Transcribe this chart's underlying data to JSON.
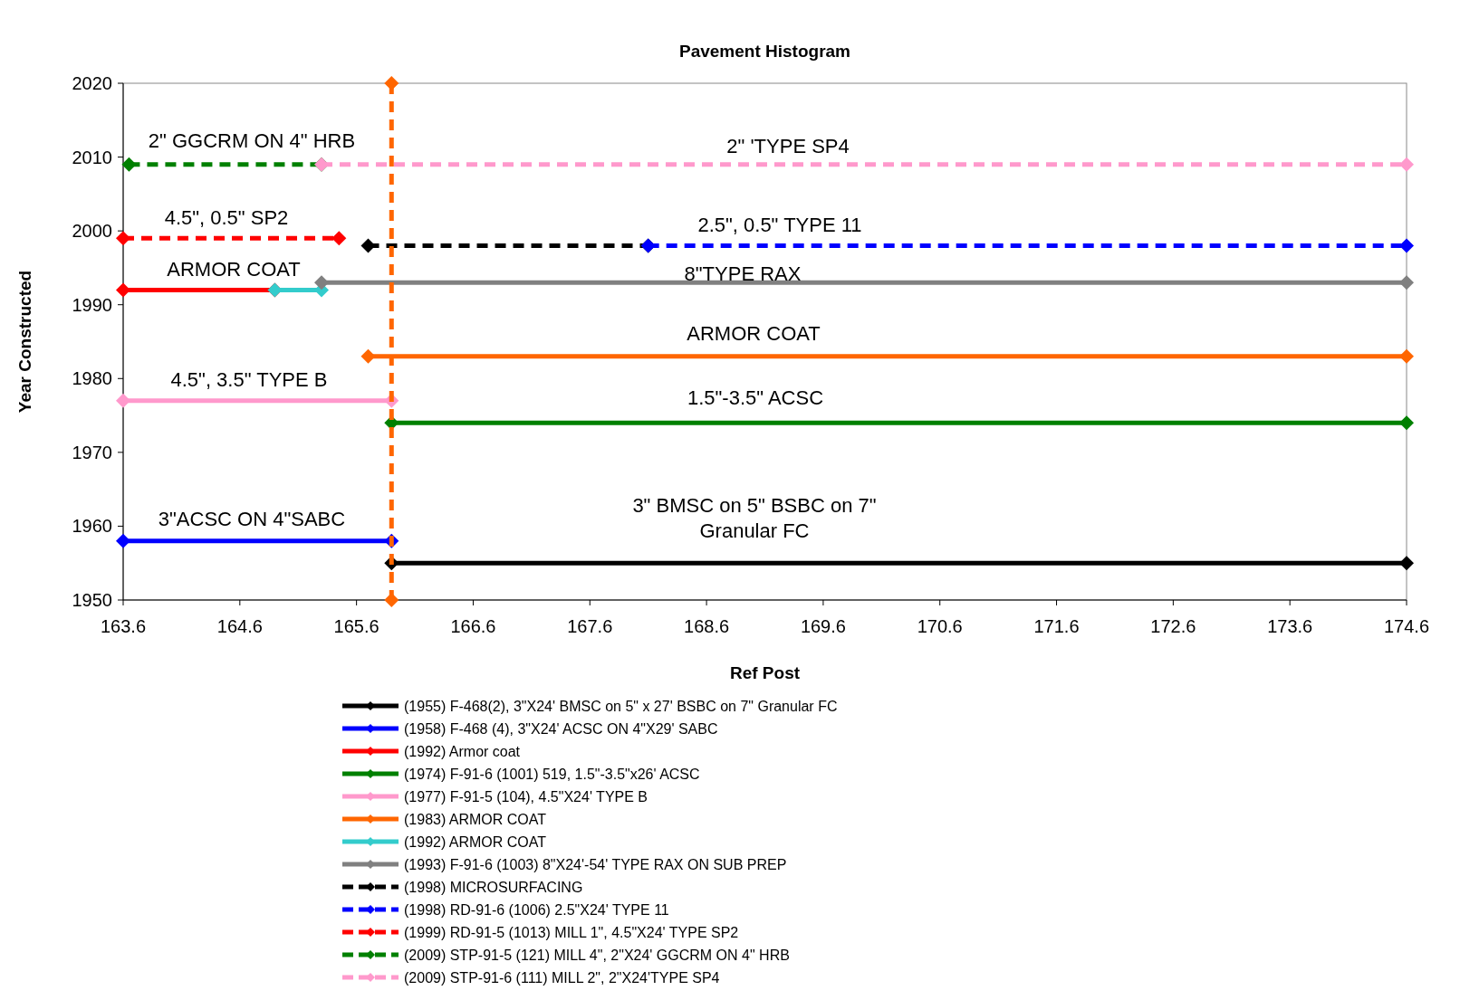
{
  "chart_data": {
    "type": "line",
    "title": "Pavement Histogram",
    "xlabel": "Ref Post",
    "ylabel": "Year Constructed",
    "xlim": [
      163.6,
      174.6
    ],
    "xticks": [
      163.6,
      164.6,
      165.6,
      166.6,
      167.6,
      168.6,
      169.6,
      170.6,
      171.6,
      172.6,
      173.6,
      174.6
    ],
    "ylim": [
      1950,
      2020
    ],
    "yticks": [
      1950,
      1960,
      1970,
      1980,
      1990,
      2000,
      2010,
      2020
    ],
    "grid": false,
    "legend": "bottom",
    "marker": "diamond",
    "series": [
      {
        "name": "(1955) F-468(2), 3\"X24' BMSC on 5\" x 27' BSBC on 7\" Granular FC",
        "color": "#000000",
        "line_style": "solid",
        "x": [
          165.9,
          174.6
        ],
        "values": [
          1955,
          1955
        ]
      },
      {
        "name": "(1958) F-468 (4), 3\"X24' ACSC ON 4\"X29' SABC",
        "color": "#0000ff",
        "line_style": "solid",
        "x": [
          163.6,
          165.9
        ],
        "values": [
          1958,
          1958
        ]
      },
      {
        "name": "(1992) Armor coat",
        "color": "#ff0000",
        "line_style": "solid",
        "x": [
          163.6,
          164.9
        ],
        "values": [
          1992,
          1992
        ]
      },
      {
        "name": "(1974) F-91-6 (1001) 519, 1.5\"-3.5\"x26' ACSC",
        "color": "#008000",
        "line_style": "solid",
        "x": [
          165.9,
          174.6
        ],
        "values": [
          1974,
          1974
        ]
      },
      {
        "name": "(1977) F-91-5 (104), 4.5\"X24' TYPE B",
        "color": "#ff99cc",
        "line_style": "solid",
        "x": [
          163.6,
          165.9
        ],
        "values": [
          1977,
          1977
        ]
      },
      {
        "name": "(1983) ARMOR COAT",
        "color": "#ff6600",
        "line_style": "solid",
        "x": [
          165.7,
          174.6
        ],
        "values": [
          1983,
          1983
        ]
      },
      {
        "name": "(1992) ARMOR COAT",
        "color": "#33cccc",
        "line_style": "solid",
        "x": [
          164.9,
          165.3
        ],
        "values": [
          1992,
          1992
        ]
      },
      {
        "name": "(1993) F-91-6 (1003) 8\"X24'-54' TYPE RAX ON SUB PREP",
        "color": "#808080",
        "line_style": "solid",
        "x": [
          165.3,
          174.6
        ],
        "values": [
          1993,
          1993
        ]
      },
      {
        "name": "(1998) MICROSURFACING",
        "color": "#000000",
        "line_style": "dashed",
        "x": [
          165.7,
          168.1
        ],
        "values": [
          1998,
          1998
        ]
      },
      {
        "name": "(1998) RD-91-6 (1006) 2.5\"X24' TYPE 11",
        "color": "#0000ff",
        "line_style": "dashed",
        "x": [
          168.1,
          174.6
        ],
        "values": [
          1998,
          1998
        ]
      },
      {
        "name": "(1999) RD-91-5 (1013) MILL 1\", 4.5\"X24' TYPE SP2",
        "color": "#ff0000",
        "line_style": "dashed",
        "x": [
          163.6,
          165.45
        ],
        "values": [
          1999,
          1999
        ]
      },
      {
        "name": "(2009) STP-91-5 (121) MILL 4\", 2\"X24' GGCRM ON 4\" HRB",
        "color": "#008000",
        "line_style": "dashed",
        "x": [
          163.65,
          165.3
        ],
        "values": [
          2009,
          2009
        ]
      },
      {
        "name": "(2009) STP-91-6 (111) MILL 2\", 2\"X24'TYPE SP4",
        "color": "#ff99cc",
        "line_style": "dashed",
        "x": [
          165.3,
          174.6
        ],
        "values": [
          2009,
          2009
        ]
      },
      {
        "color": "#ff6600",
        "line_style": "dashed",
        "x": [
          165.9,
          165.9
        ],
        "values": [
          2020,
          1950
        ]
      }
    ],
    "annotations": [
      "2\" GGCRM ON 4\" HRB",
      "2\" 'TYPE SP4",
      "4.5\", 0.5\" SP2",
      "2.5\", 0.5\" TYPE 11",
      "ARMOR COAT",
      "8\"TYPE RAX",
      "ARMOR COAT",
      "4.5\", 3.5\" TYPE B",
      "1.5\"-3.5\" ACSC",
      "3\"ACSC ON 4\"SABC",
      "3\" BMSC on 5\" BSBC on 7\"\nGranular FC"
    ]
  }
}
